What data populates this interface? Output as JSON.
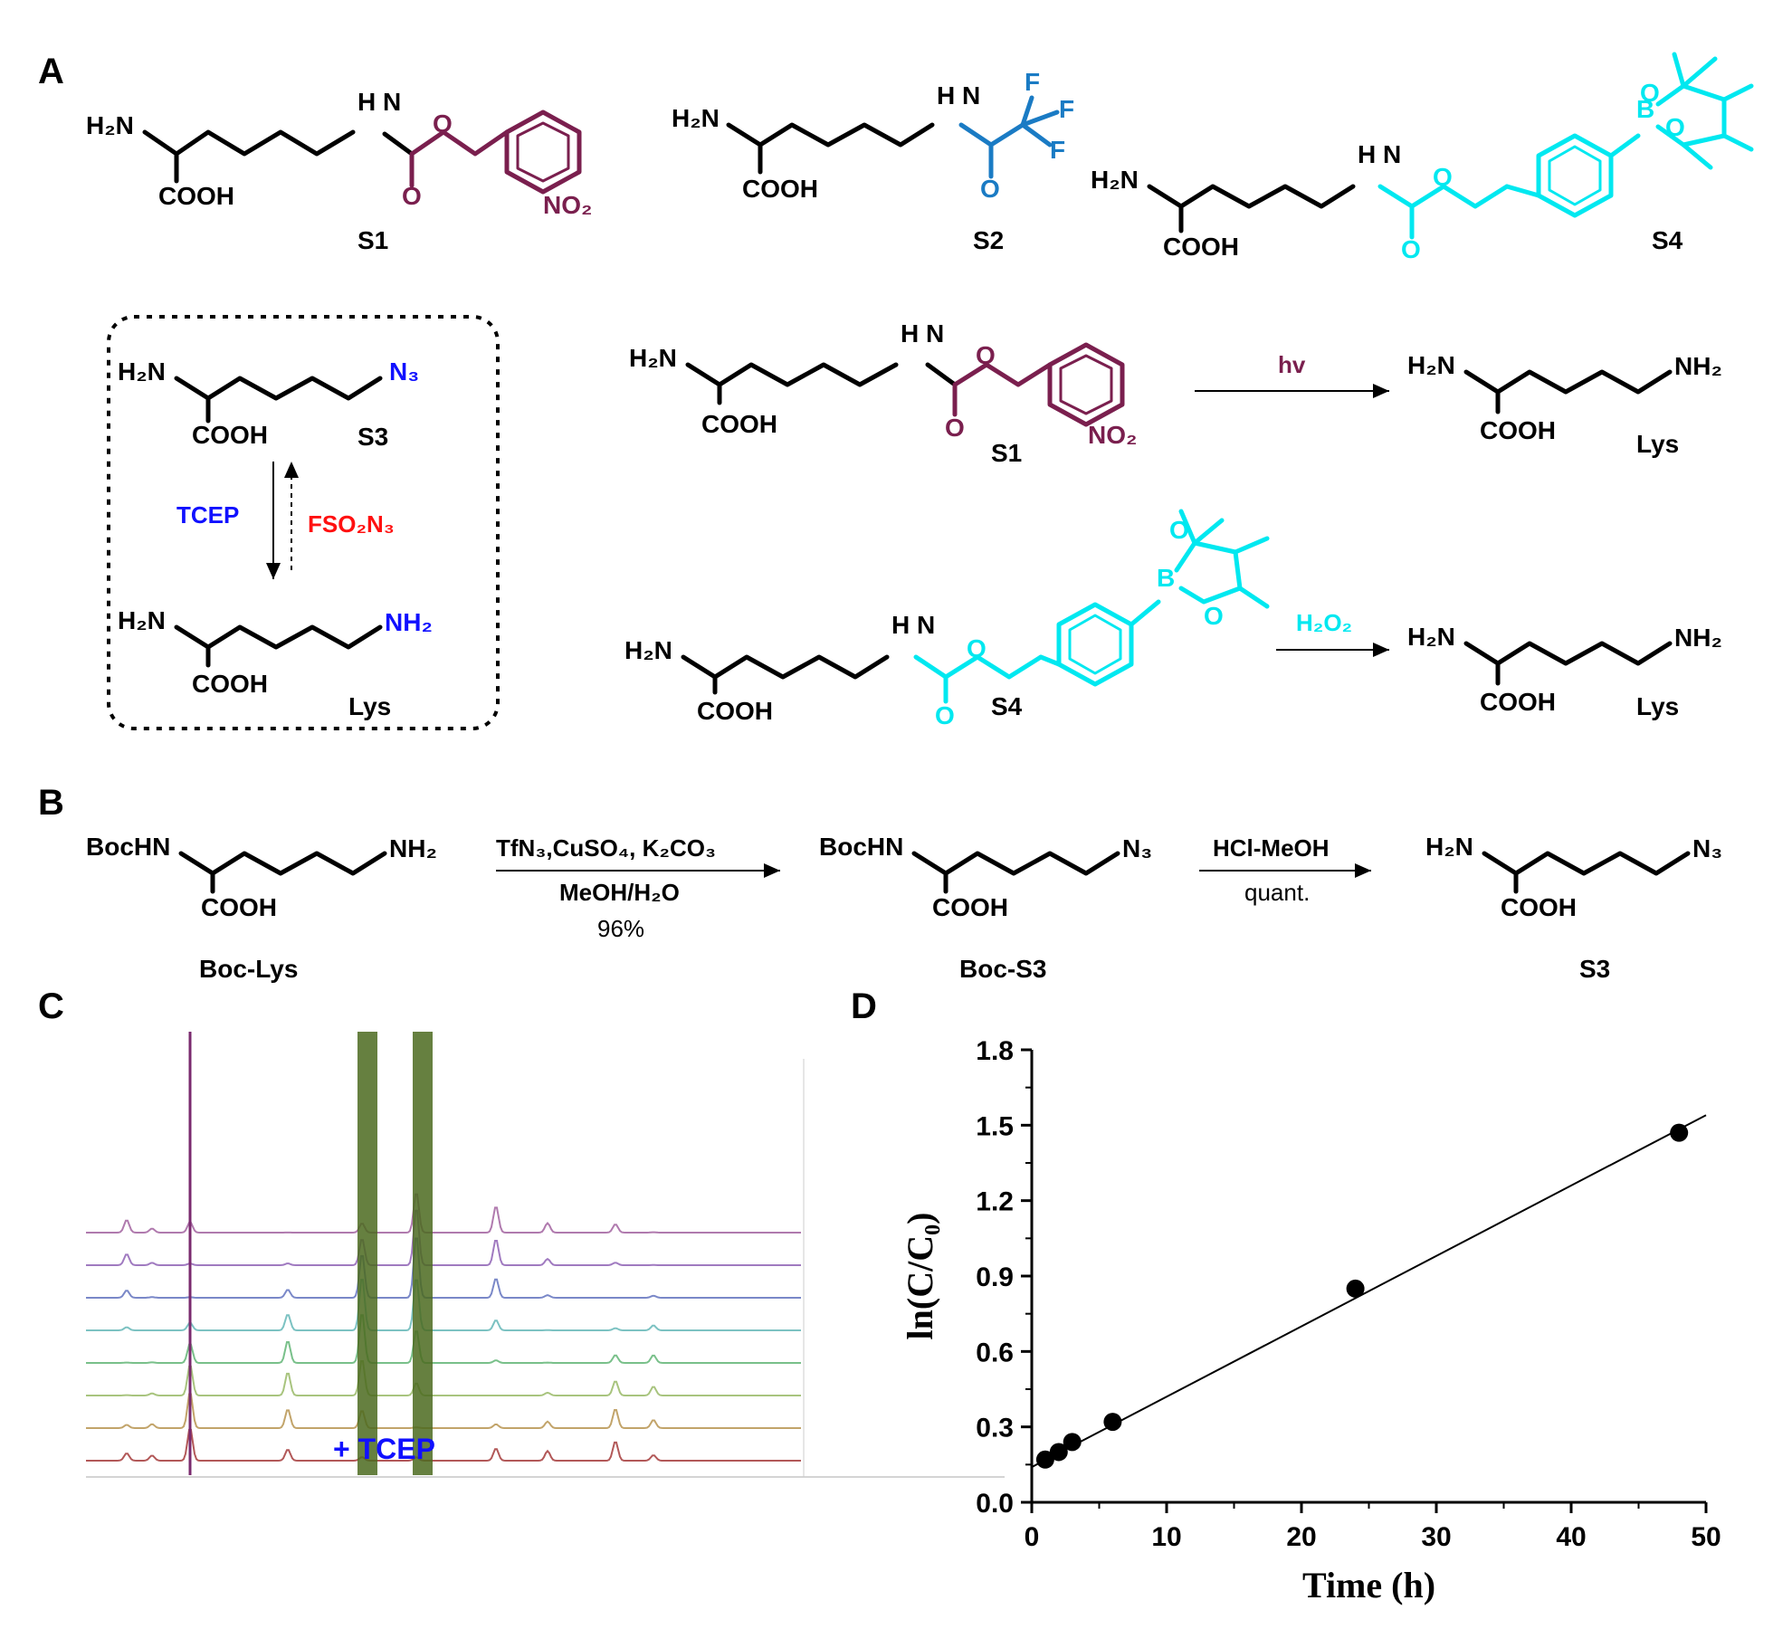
{
  "panels": {
    "a": "A",
    "b": "B",
    "c": "C",
    "d": "D"
  },
  "colors": {
    "onb": "#7a1f4e",
    "tfa": "#1a7bc4",
    "boronate": "#00e8f0",
    "azide": "#1010ff",
    "fso2n3": "#ff1010",
    "tcep_label": "#1010ff"
  },
  "panelA": {
    "common": {
      "h2n": "H₂N",
      "cooh": "COOH",
      "nh": "H N",
      "o": "O"
    },
    "s1_label": "S1",
    "s2_label": "S2",
    "s3_label": "S3",
    "s4_label": "S4",
    "lys_label": "Lys",
    "no2": "NO₂",
    "cf3_f": "F",
    "n3": "N₃",
    "nh2": "NH₂",
    "boron": "B",
    "tcep": "TCEP",
    "fso2n3": "FSO₂N₃",
    "hv": "hv",
    "h2o2": "H₂O₂"
  },
  "panelB": {
    "boc_lys": {
      "left": "BocHN",
      "right": "NH₂",
      "bottom": "COOH",
      "label": "Boc-Lys"
    },
    "boc_s3": {
      "left": "BocHN",
      "right": "N₃",
      "bottom": "COOH",
      "label": "Boc-S3"
    },
    "s3": {
      "left": "H₂N",
      "right": "N₃",
      "bottom": "COOH",
      "label": "S3"
    },
    "step1_top": "TfN₃,CuSO₄, K₂CO₃",
    "step1_mid": "MeOH/H₂O",
    "step1_yield": "96%",
    "step2_top": "HCl-MeOH",
    "step2_mid": "quant."
  },
  "panelC": {
    "annotation": "+ TCEP",
    "trace_colors": [
      "#b07aae",
      "#a07ac0",
      "#7a88c8",
      "#7cc2c2",
      "#79c08a",
      "#a8c47e",
      "#c2a46a",
      "#b25858"
    ]
  },
  "chart_data": {
    "type": "scatter",
    "x": [
      1,
      2,
      3,
      6,
      24,
      48
    ],
    "y": [
      0.17,
      0.2,
      0.24,
      0.32,
      0.85,
      1.47
    ],
    "fit_line": {
      "x": [
        0,
        50
      ],
      "y": [
        0.14,
        1.54
      ]
    },
    "xlim": [
      0,
      50
    ],
    "ylim": [
      0,
      1.8
    ],
    "xticks": [
      0,
      10,
      20,
      30,
      40,
      50
    ],
    "yticks": [
      0.0,
      0.3,
      0.6,
      0.9,
      1.2,
      1.5,
      1.8
    ],
    "xlabel": "Time (h)",
    "ylabel": "ln(C/C₀)",
    "grid": false
  }
}
